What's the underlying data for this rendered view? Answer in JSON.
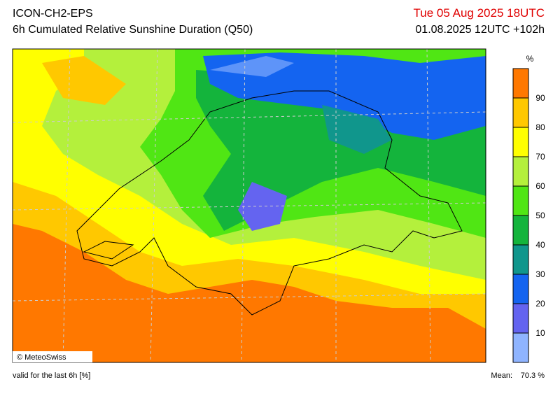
{
  "header": {
    "model": "ICON-CH2-EPS",
    "title": "6h Cumulated Relative Sunshine Duration (Q50)",
    "valid_time": "Tue 05 Aug 2025 18UTC",
    "run": "01.08.2025 12UTC +102h"
  },
  "map": {
    "copyright": "© MeteoSwiss"
  },
  "colorbar": {
    "unit": "%",
    "ticks": [
      10,
      20,
      30,
      40,
      50,
      60,
      70,
      80,
      90
    ],
    "colors": [
      "#8fb4ff",
      "#6464f0",
      "#1464f0",
      "#10968c",
      "#14b43c",
      "#50e614",
      "#b4f03c",
      "#ffff00",
      "#ffc800",
      "#ff7800"
    ]
  },
  "footer": {
    "note": "valid for the last 6h [%]",
    "mean_label": "Mean:",
    "mean": "70.3 %"
  }
}
